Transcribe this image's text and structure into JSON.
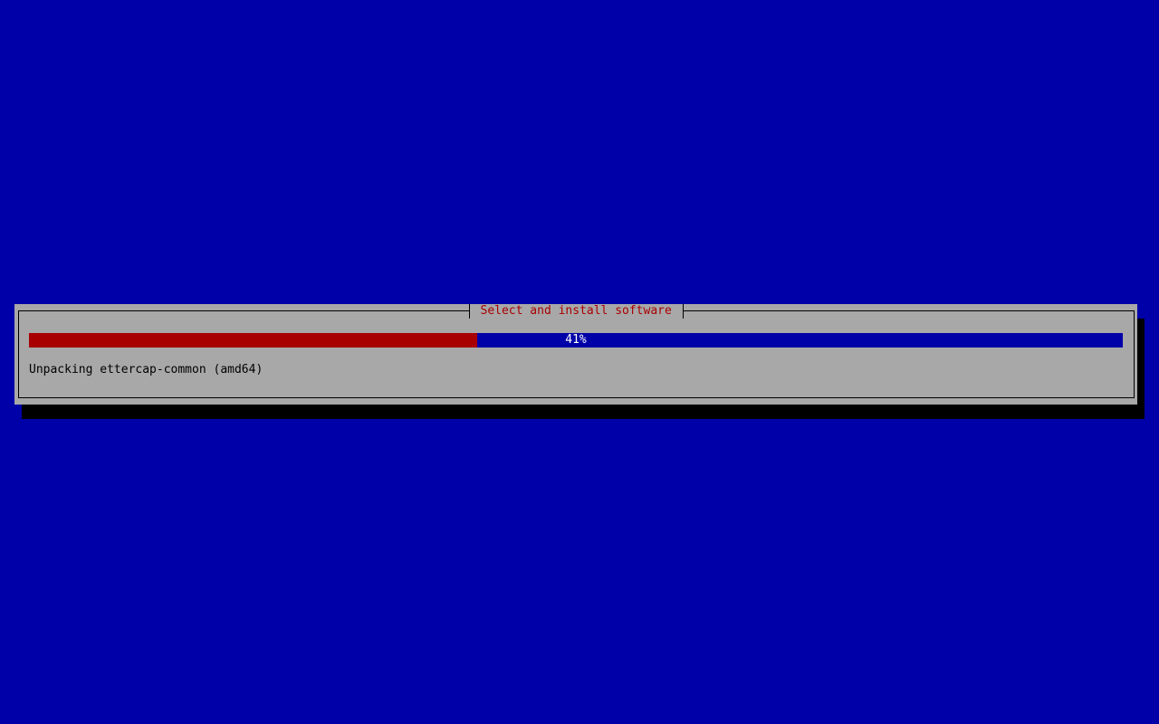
{
  "dialog": {
    "title": "Select and install software",
    "progress": {
      "percent": 41,
      "label": "41%",
      "fill_color": "#a80000",
      "track_color": "#0000a8"
    },
    "status": "Unpacking ettercap-common (amd64)"
  }
}
